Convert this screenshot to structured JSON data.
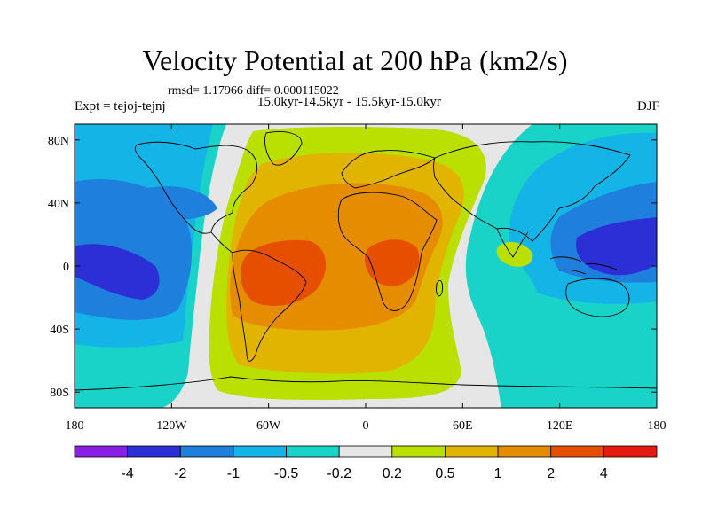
{
  "title": "Velocity Potential at 200 hPa (km2/s)",
  "stats": {
    "rmsd_line": "rmsd= 1.17966 diff= 0.000115022",
    "period": "15.0kyr-14.5kyr - 15.5kyr-15.0kyr"
  },
  "left_label": "Expt = tejoj-tejnj",
  "right_label": "DJF",
  "lat_ticks": [
    {
      "label": "80N",
      "lat": 80
    },
    {
      "label": "40N",
      "lat": 40
    },
    {
      "label": "0",
      "lat": 0
    },
    {
      "label": "40S",
      "lat": -40
    },
    {
      "label": "80S",
      "lat": -80
    }
  ],
  "lon_ticks": [
    {
      "label": "180",
      "lon": -180
    },
    {
      "label": "120W",
      "lon": -120
    },
    {
      "label": "60W",
      "lon": -60
    },
    {
      "label": "0",
      "lon": 0
    },
    {
      "label": "60E",
      "lon": 60
    },
    {
      "label": "120E",
      "lon": 120
    },
    {
      "label": "180",
      "lon": 180
    }
  ],
  "colorbar": {
    "colors": [
      "#8a1ee6",
      "#2d2fd6",
      "#1f7fdc",
      "#14b4e6",
      "#19d2c8",
      "#e6e6e6",
      "#b9e000",
      "#e0b400",
      "#e68c00",
      "#e64f00",
      "#e61a0f"
    ],
    "labels": [
      "-4",
      "-2",
      "-1",
      "-0.5",
      "-0.2",
      "0.2",
      "0.5",
      "1",
      "2",
      "4"
    ]
  },
  "chart_data": {
    "type": "heatmap",
    "title": "Velocity Potential at 200 hPa (km2/s)",
    "field": "velocity potential difference",
    "units": "km2/s",
    "season": "DJF",
    "experiment": "tejoj-tejnj",
    "rmsd": 1.17966,
    "diff": 0.000115022,
    "x_range": [
      -180,
      180
    ],
    "y_range": [
      -90,
      90
    ],
    "contour_levels": [
      -4,
      -2,
      -1,
      -0.5,
      -0.2,
      0.2,
      0.5,
      1,
      2,
      4
    ],
    "centers": [
      {
        "name": "positive-center-south-america",
        "lon": -45,
        "lat": -10,
        "value": 3
      },
      {
        "name": "positive-center-africa",
        "lon": 15,
        "lat": 0,
        "value": 2.5
      },
      {
        "name": "negative-center-east-pacific",
        "lon": -140,
        "lat": -5,
        "value": -2.5
      },
      {
        "name": "negative-center-maritime-continent",
        "lon": 135,
        "lat": 5,
        "value": -2.2
      }
    ]
  }
}
